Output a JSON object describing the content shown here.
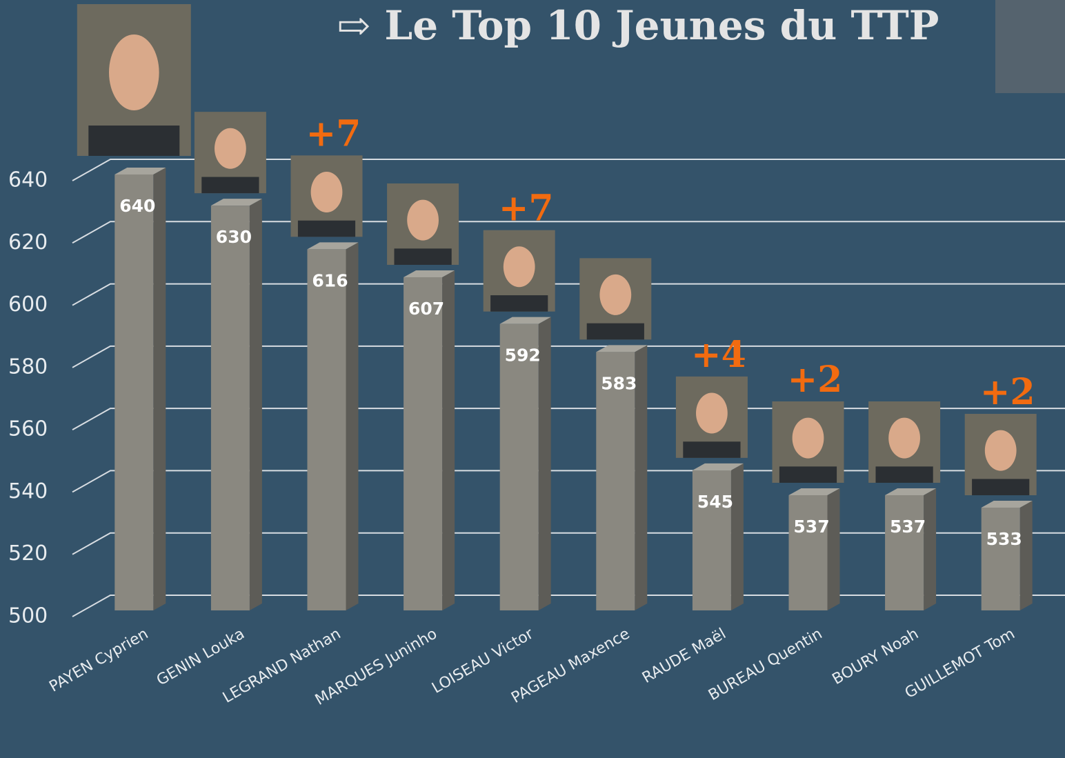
{
  "chart_data": {
    "type": "bar",
    "title": "⇨  Le Top 10 Jeunes du TTP",
    "categories": [
      "PAYEN Cyprien",
      "GENIN Louka",
      "LEGRAND Nathan",
      "MARQUES Juninho",
      "LOISEAU Victor",
      "PAGEAU Maxence",
      "RAUDE Maël",
      "BUREAU Quentin",
      "BOURY Noah",
      "GUILLEMOT Tom"
    ],
    "values": [
      640,
      630,
      616,
      607,
      592,
      583,
      545,
      537,
      537,
      533
    ],
    "annotations": [
      null,
      null,
      "+7",
      null,
      "+7",
      null,
      "+4",
      "+2",
      null,
      "+2"
    ],
    "color": "#8a8880",
    "ylim": [
      500,
      640
    ],
    "yticks": [
      500,
      520,
      540,
      560,
      580,
      600,
      620,
      640
    ],
    "grid": true
  }
}
